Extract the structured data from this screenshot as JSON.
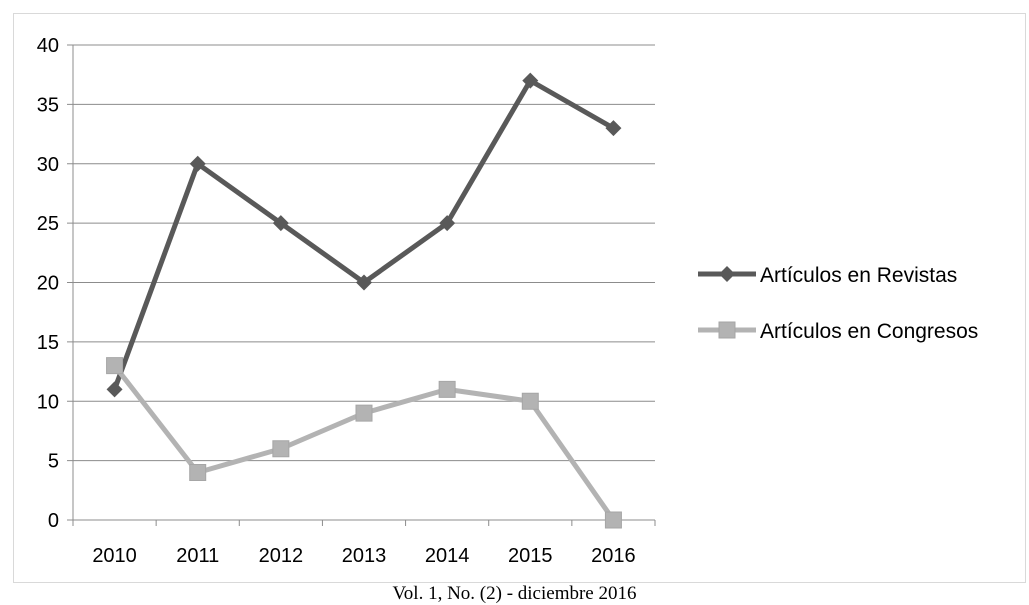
{
  "chart_data": {
    "type": "line",
    "title": "",
    "xlabel": "",
    "ylabel": "",
    "categories": [
      "2010",
      "2011",
      "2012",
      "2013",
      "2014",
      "2015",
      "2016"
    ],
    "ylim": [
      0,
      40
    ],
    "yticks": [
      0,
      5,
      10,
      15,
      20,
      25,
      30,
      35,
      40
    ],
    "grid": true,
    "legend_position": "right",
    "series": [
      {
        "name": "Artículos en Revistas",
        "values": [
          11,
          30,
          25,
          20,
          25,
          37,
          33
        ],
        "color": "#595959",
        "marker": "diamond"
      },
      {
        "name": "Artículos en Congresos",
        "values": [
          13,
          4,
          6,
          9,
          11,
          10,
          0
        ],
        "color": "#b3b3b3",
        "marker": "square"
      }
    ]
  },
  "footer": {
    "text": "Vol. 1, No. (2) - diciembre 2016"
  }
}
